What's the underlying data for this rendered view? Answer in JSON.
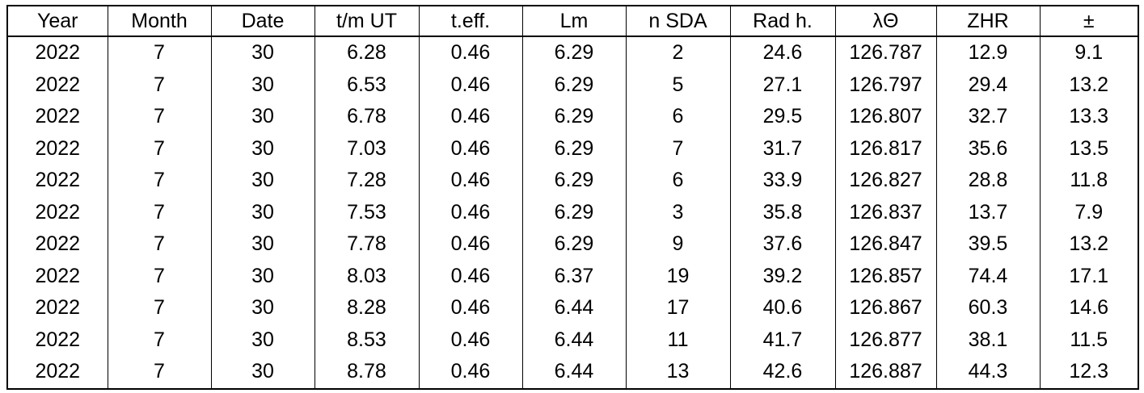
{
  "table": {
    "headers": [
      {
        "id": "year",
        "label": "Year"
      },
      {
        "id": "month",
        "label": "Month"
      },
      {
        "id": "date",
        "label": "Date"
      },
      {
        "id": "tm-ut",
        "label": "t/m UT"
      },
      {
        "id": "t-eff",
        "label": "t.eff."
      },
      {
        "id": "lm",
        "label": "Lm"
      },
      {
        "id": "n-sda",
        "label": "n SDA"
      },
      {
        "id": "rad-h",
        "label": "Rad h."
      },
      {
        "id": "lambda-sun",
        "label": "λΘ"
      },
      {
        "id": "zhr",
        "label": "ZHR"
      },
      {
        "id": "plus-minus",
        "label": "±"
      }
    ],
    "rows": [
      [
        "2022",
        "7",
        "30",
        "6.28",
        "0.46",
        "6.29",
        "2",
        "24.6",
        "126.787",
        "12.9",
        "9.1"
      ],
      [
        "2022",
        "7",
        "30",
        "6.53",
        "0.46",
        "6.29",
        "5",
        "27.1",
        "126.797",
        "29.4",
        "13.2"
      ],
      [
        "2022",
        "7",
        "30",
        "6.78",
        "0.46",
        "6.29",
        "6",
        "29.5",
        "126.807",
        "32.7",
        "13.3"
      ],
      [
        "2022",
        "7",
        "30",
        "7.03",
        "0.46",
        "6.29",
        "7",
        "31.7",
        "126.817",
        "35.6",
        "13.5"
      ],
      [
        "2022",
        "7",
        "30",
        "7.28",
        "0.46",
        "6.29",
        "6",
        "33.9",
        "126.827",
        "28.8",
        "11.8"
      ],
      [
        "2022",
        "7",
        "30",
        "7.53",
        "0.46",
        "6.29",
        "3",
        "35.8",
        "126.837",
        "13.7",
        "7.9"
      ],
      [
        "2022",
        "7",
        "30",
        "7.78",
        "0.46",
        "6.29",
        "9",
        "37.6",
        "126.847",
        "39.5",
        "13.2"
      ],
      [
        "2022",
        "7",
        "30",
        "8.03",
        "0.46",
        "6.37",
        "19",
        "39.2",
        "126.857",
        "74.4",
        "17.1"
      ],
      [
        "2022",
        "7",
        "30",
        "8.28",
        "0.46",
        "6.44",
        "17",
        "40.6",
        "126.867",
        "60.3",
        "14.6"
      ],
      [
        "2022",
        "7",
        "30",
        "8.53",
        "0.46",
        "6.44",
        "11",
        "41.7",
        "126.877",
        "38.1",
        "11.5"
      ],
      [
        "2022",
        "7",
        "30",
        "8.78",
        "0.46",
        "6.44",
        "13",
        "42.6",
        "126.887",
        "44.3",
        "12.3"
      ]
    ],
    "colors": {
      "text": "#000000",
      "background": "#ffffff",
      "border": "#000000"
    }
  }
}
